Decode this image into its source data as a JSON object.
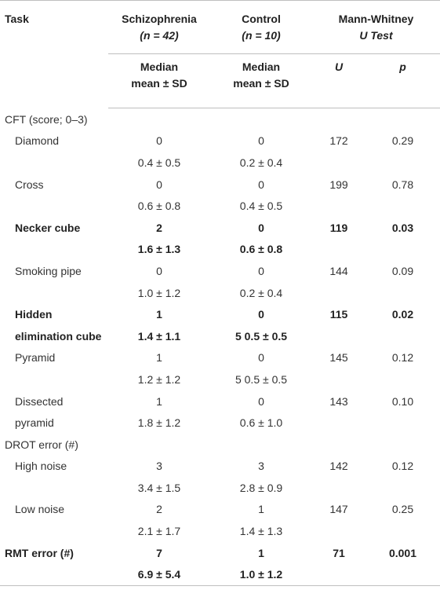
{
  "header": {
    "task": "Task",
    "schizo_title": "Schizophrenia",
    "schizo_n": "(n = 42)",
    "control_title": "Control",
    "control_n": "(n = 10)",
    "mw_title": "Mann-Whitney",
    "mw_sub": "U Test",
    "median": "Median",
    "mean_sd": "mean ± SD",
    "u": "U",
    "p": "p"
  },
  "rows": [
    {
      "label": "CFT (score; 0–3)",
      "schizo": "",
      "control": "",
      "u": "",
      "p": ""
    },
    {
      "label": "Diamond",
      "schizo": "0",
      "control": "0",
      "u": "172",
      "p": "0.29"
    },
    {
      "label": "",
      "schizo": "0.4 ± 0.5",
      "control": "0.2 ± 0.4",
      "u": "",
      "p": ""
    },
    {
      "label": "Cross",
      "schizo": "0",
      "control": "0",
      "u": "199",
      "p": "0.78"
    },
    {
      "label": "",
      "schizo": "0.6 ± 0.8",
      "control": "0.4 ± 0.5",
      "u": "",
      "p": ""
    },
    {
      "label": "Necker cube",
      "schizo": "2",
      "control": "0",
      "u": "119",
      "p": "0.03"
    },
    {
      "label": "",
      "schizo": "1.6 ± 1.3",
      "control": "0.6 ± 0.8",
      "u": "",
      "p": ""
    },
    {
      "label": "Smoking pipe",
      "schizo": "0",
      "control": "0",
      "u": "144",
      "p": "0.09"
    },
    {
      "label": "",
      "schizo": "1.0 ± 1.2",
      "control": "0.2 ± 0.4",
      "u": "",
      "p": ""
    },
    {
      "label": "Hidden",
      "schizo": "1",
      "control": "0",
      "u": "115",
      "p": "0.02"
    },
    {
      "label": "elimination cube",
      "schizo": "1.4 ± 1.1",
      "control": "5 0.5 ± 0.5",
      "u": "",
      "p": ""
    },
    {
      "label": "Pyramid",
      "schizo": "1",
      "control": "0",
      "u": "145",
      "p": "0.12"
    },
    {
      "label": "",
      "schizo": "1.2 ± 1.2",
      "control": "5 0.5 ± 0.5",
      "u": "",
      "p": ""
    },
    {
      "label": "Dissected",
      "schizo": "1",
      "control": "0",
      "u": "143",
      "p": "0.10"
    },
    {
      "label": "pyramid",
      "schizo": "1.8 ± 1.2",
      "control": "0.6 ± 1.0",
      "u": "",
      "p": ""
    },
    {
      "label": "DROT error (#)",
      "schizo": "",
      "control": "",
      "u": "",
      "p": ""
    },
    {
      "label": "High noise",
      "schizo": "3",
      "control": "3",
      "u": "142",
      "p": "0.12"
    },
    {
      "label": "",
      "schizo": "3.4 ± 1.5",
      "control": "2.8 ± 0.9",
      "u": "",
      "p": ""
    },
    {
      "label": "Low noise",
      "schizo": "2",
      "control": "1",
      "u": "147",
      "p": "0.25"
    },
    {
      "label": "",
      "schizo": "2.1 ± 1.7",
      "control": "1.4 ± 1.3",
      "u": "",
      "p": ""
    },
    {
      "label": "RMT error (#)",
      "schizo": "7",
      "control": "1",
      "u": "71",
      "p": "0.001"
    },
    {
      "label": "",
      "schizo": "6.9 ± 5.4",
      "control": "1.0 ± 1.2",
      "u": "",
      "p": ""
    }
  ]
}
